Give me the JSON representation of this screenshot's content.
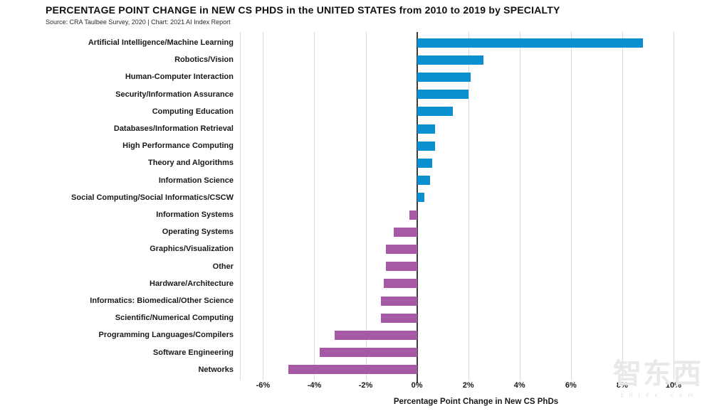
{
  "header": {
    "title": "PERCENTAGE POINT CHANGE in NEW CS PHDS in the UNITED STATES from 2010 to 2019 by SPECIALTY",
    "source": "Source: CRA Taulbee Survey, 2020 | Chart: 2021 AI Index Report"
  },
  "chart_data": {
    "type": "bar",
    "orientation": "horizontal",
    "title": "PERCENTAGE POINT CHANGE in NEW CS PHDS in the UNITED STATES from 2010 to 2019 by SPECIALTY",
    "subtitle": "Source: CRA Taulbee Survey, 2020 | Chart: 2021 AI Index Report",
    "xlabel": "Percentage Point Change in New CS PhDs",
    "categories": [
      "Artificial Intelligence/Machine Learning",
      "Robotics/Vision",
      "Human-Computer Interaction",
      "Security/Information Assurance",
      "Computing Education",
      "Databases/Information Retrieval",
      "High Performance Computing",
      "Theory and Algorithms",
      "Information Science",
      "Social Computing/Social Informatics/CSCW",
      "Information Systems",
      "Operating Systems",
      "Graphics/Visualization",
      "Other",
      "Hardware/Architecture",
      "Informatics: Biomedical/Other Science",
      "Scientific/Numerical Computing",
      "Programming Languages/Compilers",
      "Software Engineering",
      "Networks"
    ],
    "values": [
      8.8,
      2.6,
      2.1,
      2.0,
      1.4,
      0.7,
      0.7,
      0.6,
      0.5,
      0.3,
      -0.3,
      -0.9,
      -1.2,
      -1.2,
      -1.3,
      -1.4,
      -1.4,
      -3.2,
      -3.8,
      -5.0
    ],
    "xticks": [
      "-6%",
      "-4%",
      "-2%",
      "0%",
      "2%",
      "4%",
      "6%",
      "8%",
      "10%"
    ],
    "xtick_values": [
      -6,
      -4,
      -2,
      0,
      2,
      4,
      6,
      8,
      10
    ],
    "xlim": [
      -6.9,
      11.5
    ],
    "grid": true,
    "legend": "none",
    "colors": {
      "positive_bar": "#0a90d0",
      "negative_bar": "#a65aa6",
      "zero_axis": "#3d3d3d",
      "gridline": "#d9d9d9",
      "text": "#1a1a1a"
    }
  },
  "watermark": {
    "logo_text": "智东西",
    "domain_text": "z h i d x . c o m"
  }
}
